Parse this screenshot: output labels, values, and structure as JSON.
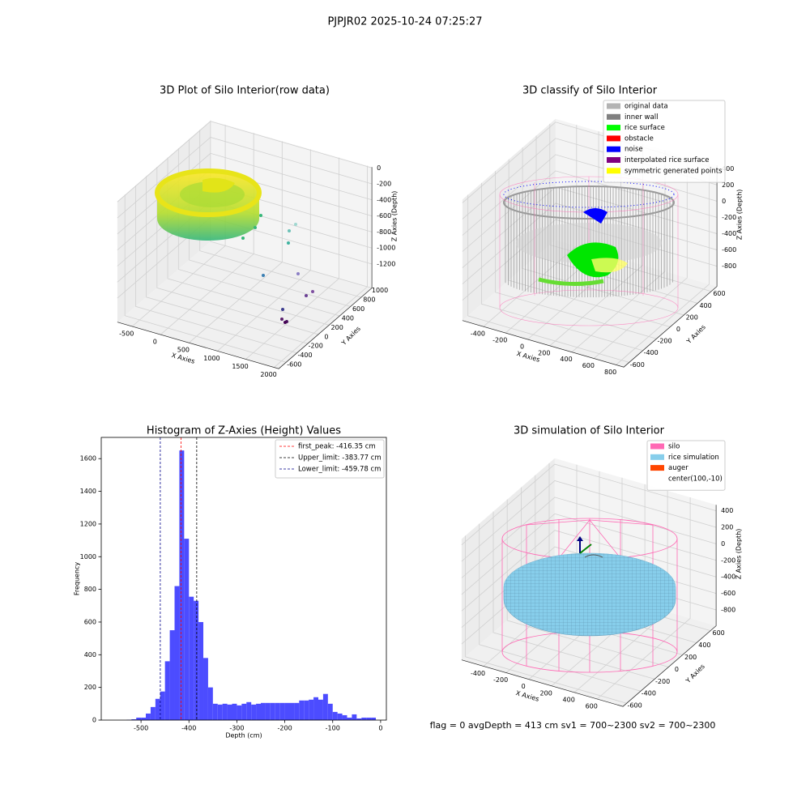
{
  "suptitle": "PJPJR02 2025-10-24 07:25:27",
  "footer": "flag = 0     avgDepth = 413 cm  sv1 = 700~2300  sv2 = 700~2300",
  "chart_data": [
    {
      "type": "scatter3d",
      "title": "3D Plot of Silo Interior(row data)",
      "xlabel": "X Axies",
      "ylabel": "Y Axies",
      "zlabel": "Z Axies (Depth)",
      "xlim": [
        -760,
        2080
      ],
      "xticks": [
        -500,
        0,
        500,
        1000,
        1500,
        2000
      ],
      "ylim": [
        -740,
        1000
      ],
      "yticks": [
        -600,
        -400,
        -200,
        0,
        200,
        400,
        600,
        800,
        1000
      ],
      "zlim": [
        -1500,
        10
      ],
      "zticks": [
        -1200,
        -1000,
        -800,
        -600,
        -400,
        -200,
        0
      ]
    },
    {
      "type": "scatter3d",
      "title": "3D classify of Silo Interior",
      "xlabel": "X Axies",
      "ylabel": "Y Axies",
      "zlabel": "Z Axies (Depth)",
      "xlim": [
        -590,
        870
      ],
      "xticks": [
        -400,
        -200,
        0,
        200,
        400,
        600,
        800
      ],
      "ylim": [
        -680,
        684
      ],
      "yticks": [
        -600,
        -400,
        -200,
        0,
        200,
        400,
        600
      ],
      "zlim": [
        -1050,
        440
      ],
      "zticks": [
        -800,
        -600,
        -400,
        -200,
        0,
        200,
        400
      ],
      "legend": [
        {
          "name": "original data",
          "color": "#b3b3b3"
        },
        {
          "name": "inner wall",
          "color": "#808080"
        },
        {
          "name": "rice surface",
          "color": "#00ff00"
        },
        {
          "name": "obstacle",
          "color": "#ff0000"
        },
        {
          "name": "noise",
          "color": "#0000ff"
        },
        {
          "name": "interpolated rice surface",
          "color": "#800080"
        },
        {
          "name": "symmetric generated points",
          "color": "#ffff00"
        }
      ]
    },
    {
      "type": "hist",
      "title": "Histogram of Z-Axies (Height) Values",
      "xlabel": "Depth (cm)",
      "ylabel": "Frequency",
      "bins": [
        -540,
        -530,
        -520,
        -510,
        -500,
        -490,
        -480,
        -470,
        -460,
        -450,
        -440,
        -430,
        -420,
        -410,
        -400,
        -390,
        -380,
        -370,
        -360,
        -350,
        -340,
        -330,
        -320,
        -310,
        -300,
        -290,
        -280,
        -270,
        -260,
        -250,
        -240,
        -230,
        -220,
        -210,
        -200,
        -190,
        -180,
        -170,
        -160,
        -150,
        -140,
        -130,
        -120,
        -110,
        -100,
        -90,
        -80,
        -70,
        -60,
        -50,
        -40,
        -30,
        -20,
        -10
      ],
      "counts": [
        0,
        2,
        5,
        15,
        15,
        40,
        80,
        130,
        175,
        360,
        550,
        820,
        1650,
        1110,
        755,
        730,
        600,
        380,
        200,
        100,
        95,
        100,
        95,
        100,
        90,
        100,
        110,
        95,
        100,
        105,
        105,
        105,
        105,
        105,
        105,
        105,
        105,
        120,
        120,
        125,
        140,
        125,
        160,
        100,
        50,
        40,
        30,
        15,
        35,
        10,
        15,
        15,
        15
      ],
      "color": "#4c4cff",
      "xlim": [
        -583,
        12
      ],
      "xticks": [
        -500,
        -400,
        -300,
        -200,
        -100,
        0
      ],
      "ylim": [
        0,
        1730
      ],
      "yticks": [
        0,
        200,
        400,
        600,
        800,
        1000,
        1200,
        1400,
        1600
      ],
      "lines": [
        {
          "value": -416.35,
          "label": "first_peak: -416.35 cm",
          "color": "#ff0000"
        },
        {
          "value": -383.77,
          "label": "Upper_limit: -383.77 cm",
          "color": "#000000"
        },
        {
          "value": -459.78,
          "label": "Lower_limit: -459.78 cm",
          "color": "#00008b"
        }
      ],
      "legend_loc": "upper right"
    },
    {
      "type": "surface3d",
      "title": "3D simulation of Silo Interior",
      "xlabel": "X Axies",
      "ylabel": "Y Axies",
      "zlabel": "Z Axies (Depth)",
      "xlim": [
        -593,
        828
      ],
      "xticks": [
        -400,
        -200,
        0,
        200,
        400,
        600
      ],
      "ylim": [
        -653,
        680
      ],
      "yticks": [
        -600,
        -400,
        -200,
        0,
        200,
        400,
        600
      ],
      "zlim": [
        -993,
        472
      ],
      "zticks": [
        -800,
        -600,
        -400,
        -200,
        0,
        200,
        400
      ],
      "legend": [
        {
          "name": "silo",
          "color": "#ff69b4"
        },
        {
          "name": "rice simulation",
          "color": "#87ceeb"
        },
        {
          "name": "auger",
          "color": "#ff4500"
        },
        {
          "name": "center(100,-10)"
        }
      ]
    }
  ]
}
